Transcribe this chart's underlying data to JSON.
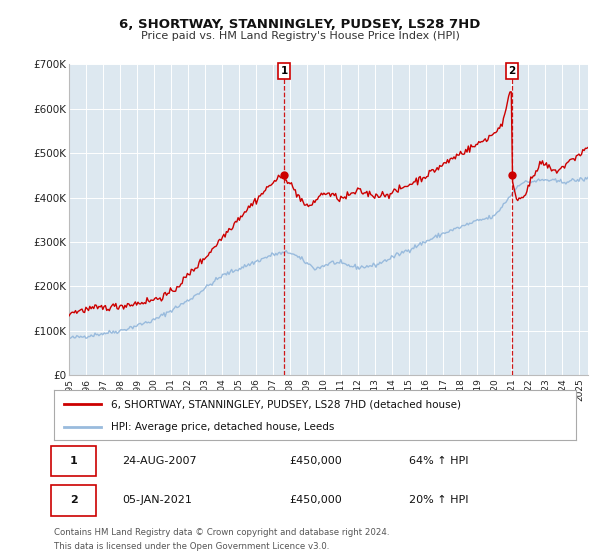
{
  "title": "6, SHORTWAY, STANNINGLEY, PUDSEY, LS28 7HD",
  "subtitle": "Price paid vs. HM Land Registry's House Price Index (HPI)",
  "legend_line1": "6, SHORTWAY, STANNINGLEY, PUDSEY, LS28 7HD (detached house)",
  "legend_line2": "HPI: Average price, detached house, Leeds",
  "footnote1": "Contains HM Land Registry data © Crown copyright and database right 2024.",
  "footnote2": "This data is licensed under the Open Government Licence v3.0.",
  "sale1_date": "24-AUG-2007",
  "sale1_price": "£450,000",
  "sale1_hpi": "64% ↑ HPI",
  "sale2_date": "05-JAN-2021",
  "sale2_price": "£450,000",
  "sale2_hpi": "20% ↑ HPI",
  "sale1_year": 2007.65,
  "sale1_value": 450000,
  "sale2_year": 2021.02,
  "sale2_value": 450000,
  "red_line_color": "#cc0000",
  "blue_line_color": "#99bbdd",
  "background_color": "#ffffff",
  "plot_bg_color": "#dde8f0",
  "grid_color": "#ffffff",
  "ylim": [
    0,
    700000
  ],
  "xlim_start": 1995,
  "xlim_end": 2025.5,
  "yticks": [
    0,
    100000,
    200000,
    300000,
    400000,
    500000,
    600000,
    700000
  ],
  "ytick_labels": [
    "£0",
    "£100K",
    "£200K",
    "£300K",
    "£400K",
    "£500K",
    "£600K",
    "£700K"
  ],
  "xticks": [
    1995,
    1996,
    1997,
    1998,
    1999,
    2000,
    2001,
    2002,
    2003,
    2004,
    2005,
    2006,
    2007,
    2008,
    2009,
    2010,
    2011,
    2012,
    2013,
    2014,
    2015,
    2016,
    2017,
    2018,
    2019,
    2020,
    2021,
    2022,
    2023,
    2024,
    2025
  ]
}
